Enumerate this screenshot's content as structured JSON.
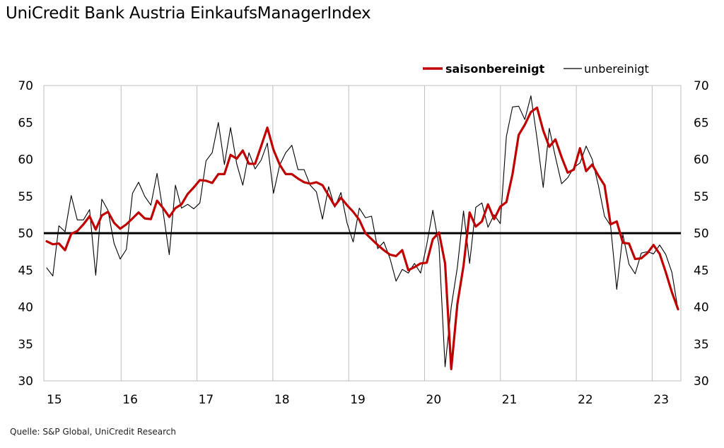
{
  "title": "UniCredit Bank Austria EinkaufsManagerIndex",
  "source": "Quelle: S&P Global, UniCredit Research",
  "colors": {
    "seasonal": "#c00000",
    "raw": "#000000",
    "reference": "#000000",
    "grid": "#bfbfbf"
  },
  "chart_data": {
    "type": "line",
    "x_axis": {
      "ticks": [
        "15",
        "16",
        "17",
        "18",
        "19",
        "20",
        "21",
        "22",
        "23"
      ],
      "start_year": 2015,
      "end": "2023-05"
    },
    "y_axis": {
      "ylim": [
        30,
        70
      ],
      "ticks": [
        30,
        35,
        40,
        45,
        50,
        55,
        60,
        65,
        70
      ],
      "dual": true
    },
    "reference_line": 50,
    "grid": "vertical-at-years",
    "legend": {
      "position": "top-right",
      "entries": [
        "saisonbereinigt",
        "unbereinigt"
      ]
    },
    "series": [
      {
        "name": "saisonbereinigt",
        "color": "#c00000",
        "values": [
          48.9,
          48.5,
          48.6,
          47.7,
          49.9,
          50.3,
          51.2,
          52.3,
          50.5,
          52.4,
          52.9,
          51.4,
          50.6,
          51.2,
          52.0,
          52.8,
          52.0,
          51.9,
          54.4,
          53.4,
          52.2,
          53.4,
          53.9,
          55.3,
          56.2,
          57.2,
          57.1,
          56.8,
          58.0,
          58.0,
          60.6,
          60.1,
          61.2,
          59.4,
          59.4,
          61.8,
          64.3,
          61.3,
          59.3,
          58.0,
          58.0,
          57.4,
          56.9,
          56.7,
          56.9,
          56.5,
          55.1,
          53.7,
          54.8,
          53.8,
          52.9,
          51.8,
          50.0,
          49.2,
          48.4,
          47.7,
          47.1,
          46.9,
          47.7,
          45.0,
          45.4,
          45.9,
          46.0,
          49.2,
          50.1,
          45.9,
          31.6,
          40.4,
          45.6,
          52.8,
          50.9,
          51.6,
          53.9,
          51.9,
          53.6,
          54.2,
          58.0,
          63.3,
          64.7,
          66.4,
          67.0,
          63.9,
          61.7,
          62.7,
          60.3,
          58.2,
          58.6,
          61.5,
          58.4,
          59.3,
          57.8,
          56.5,
          51.2,
          51.6,
          48.7,
          48.6,
          46.5,
          46.6,
          47.3,
          48.4,
          47.2,
          44.7,
          42.0,
          39.7
        ]
      },
      {
        "name": "unbereinigt",
        "color": "#000000",
        "values": [
          45.3,
          44.2,
          51.0,
          50.2,
          55.1,
          51.8,
          51.8,
          53.2,
          44.3,
          54.6,
          53.1,
          48.6,
          46.5,
          47.8,
          55.4,
          56.9,
          55.0,
          53.8,
          58.1,
          52.9,
          47.1,
          56.5,
          53.4,
          53.9,
          53.3,
          54.1,
          59.8,
          60.9,
          65.0,
          59.3,
          64.3,
          59.4,
          56.5,
          60.9,
          58.7,
          59.9,
          62.2,
          55.4,
          59.2,
          60.9,
          61.9,
          58.6,
          58.6,
          56.5,
          55.6,
          51.9,
          56.3,
          53.5,
          55.5,
          51.4,
          48.8,
          53.4,
          52.1,
          52.3,
          47.9,
          48.8,
          46.6,
          43.5,
          45.1,
          44.6,
          45.9,
          44.6,
          48.4,
          53.1,
          48.3,
          31.9,
          40.0,
          45.4,
          53.0,
          45.9,
          53.5,
          54.1,
          50.8,
          52.5,
          51.3,
          63.1,
          67.1,
          67.2,
          65.4,
          68.6,
          62.8,
          56.2,
          64.2,
          60.3,
          56.7,
          57.5,
          58.9,
          59.5,
          61.8,
          60.0,
          56.5,
          52.3,
          51.0,
          42.4,
          49.8,
          45.8,
          44.5,
          47.3,
          47.5,
          47.2,
          48.4,
          47.1,
          44.7,
          39.6
        ]
      }
    ]
  }
}
